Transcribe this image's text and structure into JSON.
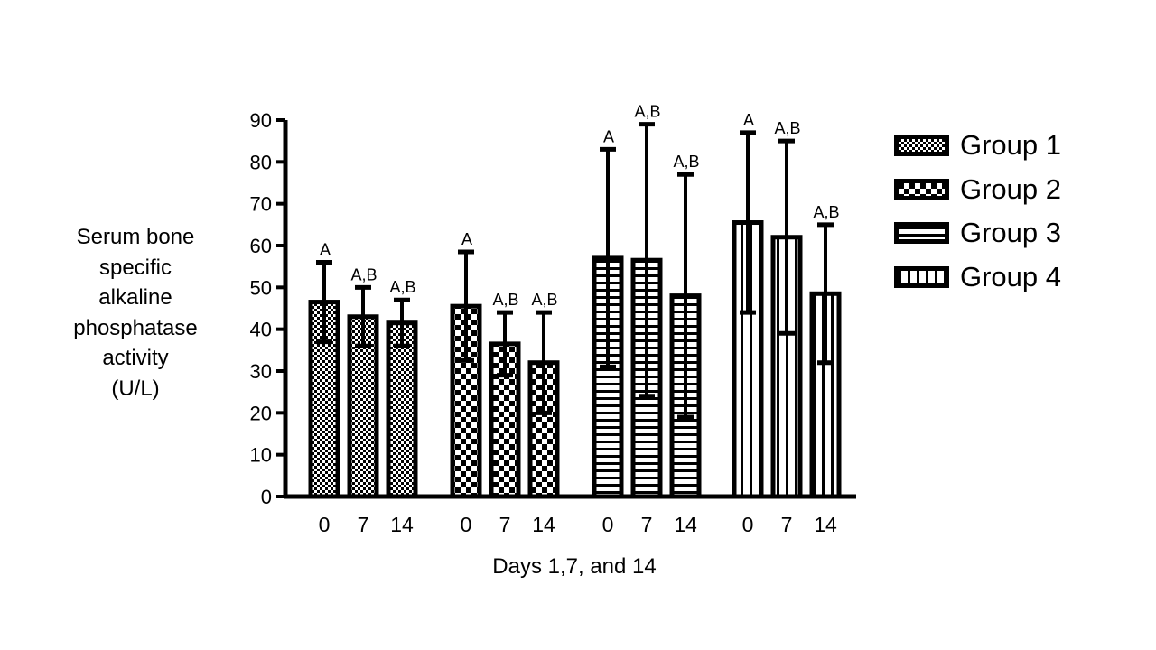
{
  "chart_data": {
    "type": "bar",
    "title": "",
    "ylabel": "Serum bone\nspecific\nalkaline\nphosphatase\nactivity\n(U/L)",
    "xlabel": "Days 1,7, and 14",
    "ylim": [
      0,
      90
    ],
    "y_ticks": [
      "0",
      "10",
      "20",
      "30",
      "40",
      "50",
      "60",
      "70",
      "80",
      "90"
    ],
    "grid": false,
    "legend_position": "right",
    "error_bars": "one-sided (upper), with bar-overlaid lower whisker",
    "series": [
      {
        "name": "Group 1",
        "pattern": "fine-checker",
        "categories": [
          "0",
          "7",
          "14"
        ],
        "values": [
          46.5,
          43,
          41.5
        ],
        "error": [
          9.5,
          7,
          5.5
        ],
        "labels": [
          "A",
          "A,B",
          "A,B"
        ]
      },
      {
        "name": "Group 2",
        "pattern": "checker",
        "categories": [
          "0",
          "7",
          "14"
        ],
        "values": [
          45.5,
          36.5,
          32
        ],
        "error": [
          13,
          7.5,
          12
        ],
        "labels": [
          "A",
          "A,B",
          "A,B"
        ]
      },
      {
        "name": "Group 3",
        "pattern": "horizontal-lines",
        "categories": [
          "0",
          "7",
          "14"
        ],
        "values": [
          57,
          56.5,
          48
        ],
        "error": [
          26,
          32.5,
          29
        ],
        "labels": [
          "A",
          "A,B",
          "A,B"
        ]
      },
      {
        "name": "Group 4",
        "pattern": "vertical-lines",
        "categories": [
          "0",
          "7",
          "14"
        ],
        "values": [
          65.5,
          62,
          48.5
        ],
        "error": [
          21.5,
          23,
          16.5
        ],
        "labels": [
          "A",
          "A,B",
          "A,B"
        ]
      }
    ]
  }
}
